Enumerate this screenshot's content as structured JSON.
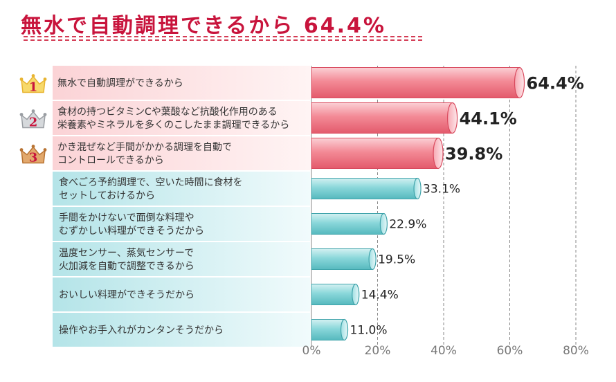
{
  "title": "無水で自動調理できるから 64.4%",
  "colors": {
    "title": "#c8143c",
    "top": "#ec6f80",
    "rest": "#6ac8cc"
  },
  "chart_data": {
    "type": "bar",
    "orientation": "horizontal",
    "categories": [
      [
        "無水で自動調理ができるから"
      ],
      [
        "食材の持つビタミンCや葉酸など抗酸化作用のある",
        "栄養素やミネラルを多くのこしたまま調理できるから"
      ],
      [
        "かき混ぜなど手間がかかる調理を自動で",
        "コントロールできるから"
      ],
      [
        "食べごろ予約調理で、空いた時間に食材を",
        "セットしておけるから"
      ],
      [
        "手間をかけないで面倒な料理や",
        "むずかしい料理ができそうだから"
      ],
      [
        "温度センサー、蒸気センサーで",
        "火加減を自動で調整できるから"
      ],
      [
        "おいしい料理ができそうだから"
      ],
      [
        "操作やお手入れがカンタンそうだから"
      ]
    ],
    "values": [
      64.4,
      44.1,
      39.8,
      33.1,
      22.9,
      19.5,
      14.4,
      11.0
    ],
    "value_labels": [
      "64.4%",
      "44.1%",
      "39.8%",
      "33.1%",
      "22.9%",
      "19.5%",
      "14.4%",
      "11.0%"
    ],
    "ranks": [
      "1",
      "2",
      "3"
    ],
    "xlim": [
      0,
      80
    ],
    "xticks": [
      "0%",
      "20%",
      "40%",
      "60%",
      "80%"
    ],
    "grid": true
  }
}
